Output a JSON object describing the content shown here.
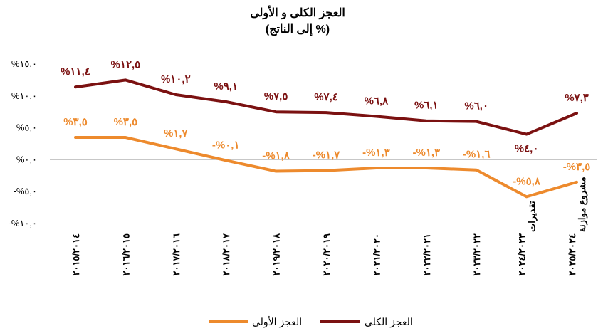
{
  "chart_data": {
    "type": "line",
    "title": "العجز الكلى و الأولى",
    "subtitle": "(% إلى الناتج)",
    "categories": [
      "٢٠١٥/٢٠١٤",
      "٢٠١٦/٢٠١٥",
      "٢٠١٧/٢٠١٦",
      "٢٠١٨/٢٠١٧",
      "٢٠١٩/٢٠١٨",
      "٢٠٢٠/٢٠١٩",
      "٢٠٢١/٢٠٢٠",
      "٢٠٢٢/٢٠٢١",
      "٢٠٢٣/٢٠٢٢",
      "٢٠٢٤/٢٠٢٣",
      "٢٠٢٥/٢٠٢٤"
    ],
    "category_sublabels": [
      "",
      "",
      "",
      "",
      "",
      "",
      "",
      "",
      "",
      "تقديرات",
      "مشروع موازنة"
    ],
    "ylim": [
      -10,
      15
    ],
    "yticks": [
      15,
      10,
      5,
      0,
      -5,
      -10
    ],
    "ytick_labels": [
      "%١٥,٠",
      "%١٠,٠",
      "%٥,٠",
      "%٠,٠",
      "-%٥,٠",
      "-%١٠,٠"
    ],
    "series": [
      {
        "name": "العجز الكلى",
        "color": "#7b1111",
        "values": [
          11.4,
          12.5,
          10.2,
          9.1,
          7.5,
          7.4,
          6.8,
          6.1,
          6.0,
          4.0,
          7.3
        ],
        "labels": [
          "%١١,٤",
          "%١٢,٥",
          "%١٠,٢",
          "%٩,١",
          "%٧,٥",
          "%٧,٤",
          "%٦,٨",
          "%٦,١",
          "%٦,٠",
          "%٤,٠",
          "%٧,٣"
        ]
      },
      {
        "name": "العجز الأولى",
        "color": "#ed8a2d",
        "values": [
          3.5,
          3.5,
          1.7,
          -0.1,
          -1.8,
          -1.7,
          -1.3,
          -1.3,
          -1.6,
          -5.8,
          -3.5
        ],
        "labels": [
          "%٣,٥",
          "%٣,٥",
          "%١,٧",
          "-%٠,١",
          "-%١,٨",
          "-%١,٧",
          "-%١,٣",
          "-%١,٣",
          "-%١,٦",
          "-%٥,٨",
          "-%٣,٥"
        ]
      }
    ],
    "grid": false,
    "legend_position": "bottom"
  }
}
